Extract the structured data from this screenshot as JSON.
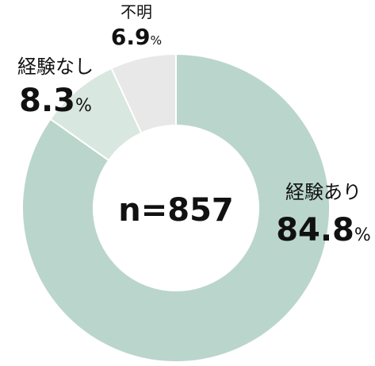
{
  "chart_data": {
    "type": "donut",
    "categories": [
      "経験あり",
      "経験なし",
      "不明"
    ],
    "values": [
      84.8,
      8.3,
      6.9
    ],
    "unit": "%",
    "colors": [
      "#bad6cc",
      "#d9e7e1",
      "#e8e8e8"
    ],
    "center_label": "n=857"
  }
}
